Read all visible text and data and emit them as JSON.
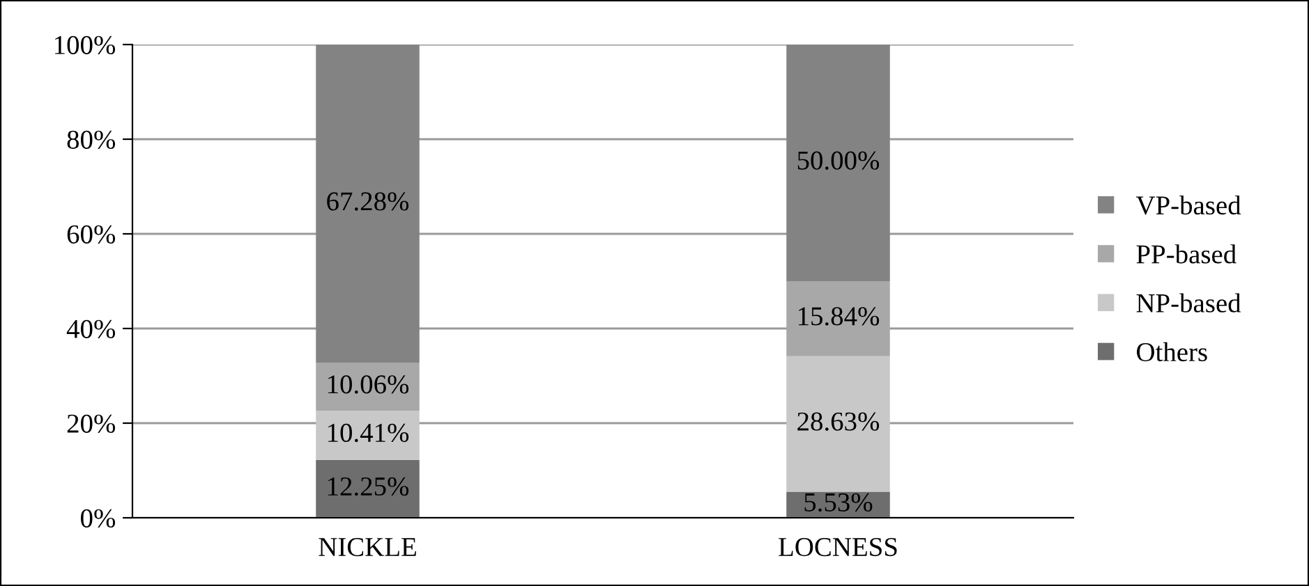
{
  "chart_data": {
    "type": "bar",
    "stacked": true,
    "categories": [
      "NICKLE",
      "LOCNESS"
    ],
    "series": [
      {
        "name": "Others",
        "color": "#6e6e6e",
        "values": [
          12.25,
          5.53
        ],
        "value_labels": [
          "12.25%",
          "5.53%"
        ]
      },
      {
        "name": "NP-based",
        "color": "#c8c8c8",
        "values": [
          10.41,
          28.63
        ],
        "value_labels": [
          "10.41%",
          "28.63%"
        ]
      },
      {
        "name": "PP-based",
        "color": "#a8a8a8",
        "values": [
          10.06,
          15.84
        ],
        "value_labels": [
          "10.06%",
          "15.84%"
        ]
      },
      {
        "name": "VP-based",
        "color": "#838383",
        "values": [
          67.28,
          50.0
        ],
        "value_labels": [
          "67.28%",
          "50.00%"
        ]
      }
    ],
    "ylim": [
      0,
      100
    ],
    "yticks": [
      {
        "value": 0,
        "label": "0%"
      },
      {
        "value": 20,
        "label": "20%"
      },
      {
        "value": 40,
        "label": "40%"
      },
      {
        "value": 60,
        "label": "60%"
      },
      {
        "value": 80,
        "label": "80%"
      },
      {
        "value": 100,
        "label": "100%"
      }
    ],
    "grid": "y",
    "legend": "right"
  }
}
